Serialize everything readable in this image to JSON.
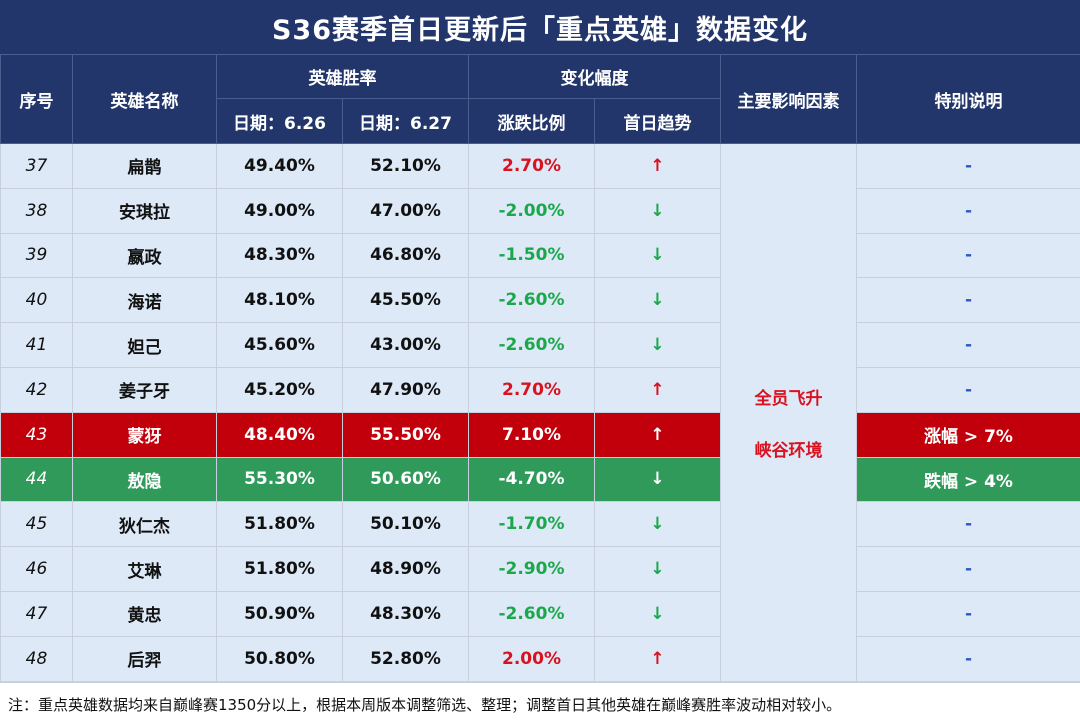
{
  "title": "S36赛季首日更新后「重点英雄」数据变化",
  "headers": {
    "seq": "序号",
    "hero": "英雄名称",
    "winrate": "英雄胜率",
    "date1": "日期：6.26",
    "date2": "日期：6.27",
    "change": "变化幅度",
    "ratio": "涨跌比例",
    "trend": "首日趋势",
    "factor": "主要影响因素",
    "note": "特别说明"
  },
  "factor": {
    "line1": "全员飞升",
    "line2": "峡谷环境"
  },
  "rows": [
    {
      "seq": "37",
      "hero": "扁鹊",
      "d1": "49.40%",
      "d2": "52.10%",
      "ratio": "2.70%",
      "trend": "↑",
      "dir": "up",
      "note": "-"
    },
    {
      "seq": "38",
      "hero": "安琪拉",
      "d1": "49.00%",
      "d2": "47.00%",
      "ratio": "-2.00%",
      "trend": "↓",
      "dir": "down",
      "note": "-"
    },
    {
      "seq": "39",
      "hero": "嬴政",
      "d1": "48.30%",
      "d2": "46.80%",
      "ratio": "-1.50%",
      "trend": "↓",
      "dir": "down",
      "note": "-"
    },
    {
      "seq": "40",
      "hero": "海诺",
      "d1": "48.10%",
      "d2": "45.50%",
      "ratio": "-2.60%",
      "trend": "↓",
      "dir": "down",
      "note": "-"
    },
    {
      "seq": "41",
      "hero": "妲己",
      "d1": "45.60%",
      "d2": "43.00%",
      "ratio": "-2.60%",
      "trend": "↓",
      "dir": "down",
      "note": "-"
    },
    {
      "seq": "42",
      "hero": "姜子牙",
      "d1": "45.20%",
      "d2": "47.90%",
      "ratio": "2.70%",
      "trend": "↑",
      "dir": "up",
      "note": "-"
    },
    {
      "seq": "43",
      "hero": "蒙犽",
      "d1": "48.40%",
      "d2": "55.50%",
      "ratio": "7.10%",
      "trend": "↑",
      "dir": "up",
      "note": "涨幅 > 7%",
      "highlight": "red"
    },
    {
      "seq": "44",
      "hero": "敖隐",
      "d1": "55.30%",
      "d2": "50.60%",
      "ratio": "-4.70%",
      "trend": "↓",
      "dir": "down",
      "note": "跌幅 > 4%",
      "highlight": "green"
    },
    {
      "seq": "45",
      "hero": "狄仁杰",
      "d1": "51.80%",
      "d2": "50.10%",
      "ratio": "-1.70%",
      "trend": "↓",
      "dir": "down",
      "note": "-"
    },
    {
      "seq": "46",
      "hero": "艾琳",
      "d1": "51.80%",
      "d2": "48.90%",
      "ratio": "-2.90%",
      "trend": "↓",
      "dir": "down",
      "note": "-"
    },
    {
      "seq": "47",
      "hero": "黄忠",
      "d1": "50.90%",
      "d2": "48.30%",
      "ratio": "-2.60%",
      "trend": "↓",
      "dir": "down",
      "note": "-"
    },
    {
      "seq": "48",
      "hero": "后羿",
      "d1": "50.80%",
      "d2": "52.80%",
      "ratio": "2.00%",
      "trend": "↑",
      "dir": "up",
      "note": "-"
    }
  ],
  "footnote": "注：重点英雄数据均来自巅峰赛1350分以上，根据本周版本调整筛选、整理；调整首日其他英雄在巅峰赛胜率波动相对较小。",
  "colors": {
    "header_bg": "#22366b",
    "row_bg": "#dde9f7",
    "up": "#d8121f",
    "down": "#1aa84a",
    "highlight_red": "#c1000b",
    "highlight_green": "#2f9a5a",
    "dash": "#2a5cc0"
  }
}
